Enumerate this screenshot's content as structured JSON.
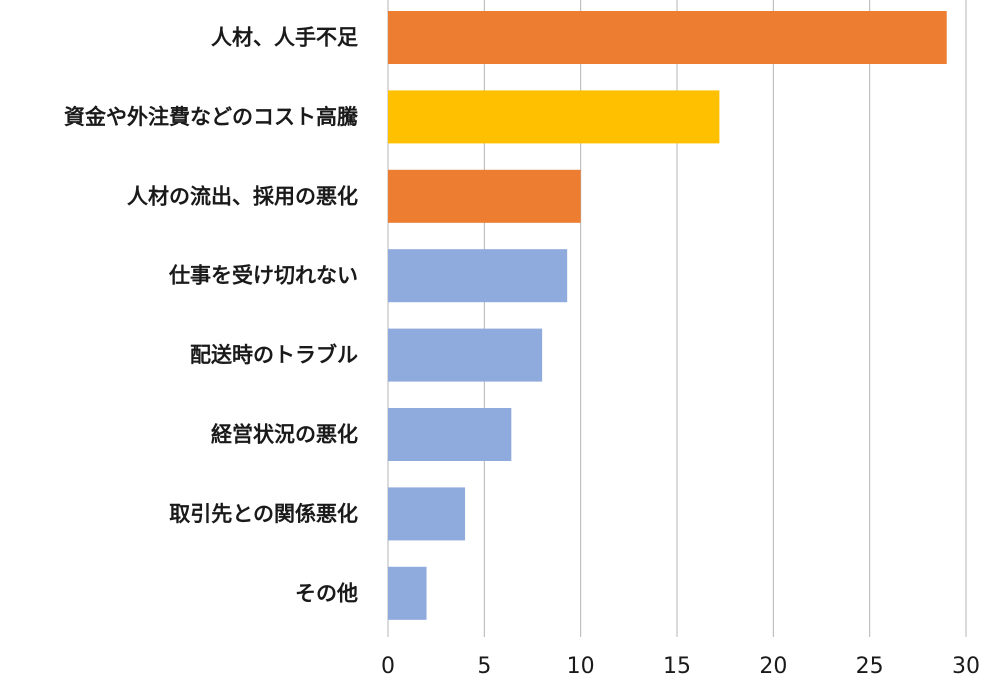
{
  "chart_data": {
    "type": "bar",
    "orientation": "horizontal",
    "categories": [
      "人材、人手不足",
      "資金や外注費などのコスト高騰",
      "人材の流出、採用の悪化",
      "仕事を受け切れない",
      "配送時のトラブル",
      "経営状況の悪化",
      "取引先との関係悪化",
      "その他"
    ],
    "values": [
      29,
      17.2,
      10,
      9.3,
      8,
      6.4,
      4,
      2
    ],
    "bar_colors": [
      "#ED7D31",
      "#FFC000",
      "#ED7D31",
      "#8FAADC",
      "#8FAADC",
      "#8FAADC",
      "#8FAADC",
      "#8FAADC"
    ],
    "xlim": [
      0,
      30
    ],
    "xticks": [
      0,
      5,
      10,
      15,
      20,
      25,
      30
    ],
    "tick_labels": [
      "0",
      "5",
      "10",
      "15",
      "20",
      "25",
      "30"
    ],
    "title": "",
    "xlabel": "",
    "ylabel": "",
    "grid": "vertical",
    "legend": "none"
  }
}
